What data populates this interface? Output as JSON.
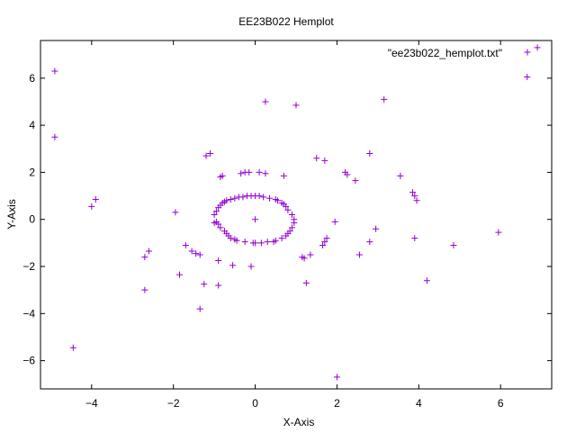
{
  "chart_data": {
    "type": "scatter",
    "title": "EE23B022 Hemplot",
    "xlabel": "X-Axis",
    "ylabel": "Y-Axis",
    "xlim": [
      -5.25,
      7.25
    ],
    "ylim": [
      -7.2,
      7.6
    ],
    "xticks": [
      -4,
      -2,
      0,
      2,
      4,
      6
    ],
    "yticks": [
      -6,
      -4,
      -2,
      0,
      2,
      4,
      6
    ],
    "grid": false,
    "legend_position": "top-right",
    "marker": "plus",
    "series": [
      {
        "name": "\"ee23b022_hemplot.txt\"",
        "color": "#9400d3",
        "x": [
          -4.9,
          -4.9,
          0.25,
          1.0,
          3.15,
          6.65,
          6.9,
          -1.2,
          -1.1,
          -0.85,
          -0.8,
          -0.35,
          -0.25,
          -0.15,
          0.1,
          0.25,
          0.7,
          1.5,
          1.7,
          2.2,
          2.25,
          2.45,
          2.8,
          3.55,
          3.85,
          3.9,
          3.95,
          -3.9,
          -4.0,
          -1.95,
          -1.0,
          -0.95,
          -0.9,
          -0.85,
          -0.8,
          -0.75,
          -0.7,
          -0.6,
          -0.5,
          -0.4,
          -0.3,
          -0.2,
          -0.1,
          0.0,
          0.1,
          0.2,
          0.35,
          0.5,
          0.55,
          0.65,
          0.7,
          0.75,
          0.8,
          0.9,
          0.95,
          0.95,
          0.9,
          0.85,
          0.8,
          0.75,
          0.65,
          0.5,
          0.45,
          0.3,
          0.15,
          0.0,
          -0.05,
          -0.25,
          -0.45,
          -0.5,
          -0.6,
          -0.65,
          -0.7,
          -0.75,
          -0.85,
          -0.9,
          -0.95,
          -1.0,
          0.0,
          1.95,
          2.95,
          1.75,
          1.7,
          1.65,
          1.15,
          1.2,
          1.35,
          2.55,
          2.8,
          3.9,
          4.85,
          5.95,
          -1.7,
          -1.55,
          -1.45,
          -1.35,
          -1.85,
          -2.6,
          -2.7,
          -0.9,
          -0.55,
          -0.1,
          -0.9,
          -1.25,
          -1.35,
          -2.7,
          -4.45,
          1.25,
          2.0,
          4.2
        ],
        "y": [
          6.3,
          3.5,
          5.0,
          4.85,
          5.1,
          6.05,
          7.3,
          2.7,
          2.8,
          1.8,
          1.85,
          1.95,
          2.0,
          2.0,
          2.0,
          1.95,
          1.85,
          2.6,
          2.5,
          2.0,
          1.9,
          1.65,
          2.8,
          1.85,
          1.15,
          1.0,
          0.8,
          0.85,
          0.55,
          0.3,
          0.2,
          0.35,
          0.5,
          0.6,
          0.7,
          0.75,
          0.8,
          0.85,
          0.9,
          0.95,
          0.95,
          1.0,
          1.0,
          1.0,
          1.0,
          0.95,
          0.9,
          0.85,
          0.8,
          0.7,
          0.65,
          0.55,
          0.4,
          0.2,
          0.0,
          -0.15,
          -0.35,
          -0.5,
          -0.6,
          -0.7,
          -0.8,
          -0.9,
          -0.95,
          -0.95,
          -1.0,
          -1.0,
          -1.0,
          -0.95,
          -0.9,
          -0.85,
          -0.8,
          -0.7,
          -0.6,
          -0.5,
          -0.35,
          -0.2,
          -0.1,
          -0.15,
          0.0,
          -0.1,
          -0.4,
          -0.8,
          -0.95,
          -1.1,
          -1.6,
          -1.65,
          -1.5,
          -1.5,
          -0.95,
          -0.8,
          -1.1,
          -0.55,
          -1.1,
          -1.35,
          -1.45,
          -1.5,
          -2.35,
          -1.35,
          -1.6,
          -1.75,
          -1.95,
          -2.0,
          -2.8,
          -2.75,
          -3.8,
          -3.0,
          -5.45,
          -2.7,
          -6.7,
          -2.6
        ]
      }
    ]
  }
}
